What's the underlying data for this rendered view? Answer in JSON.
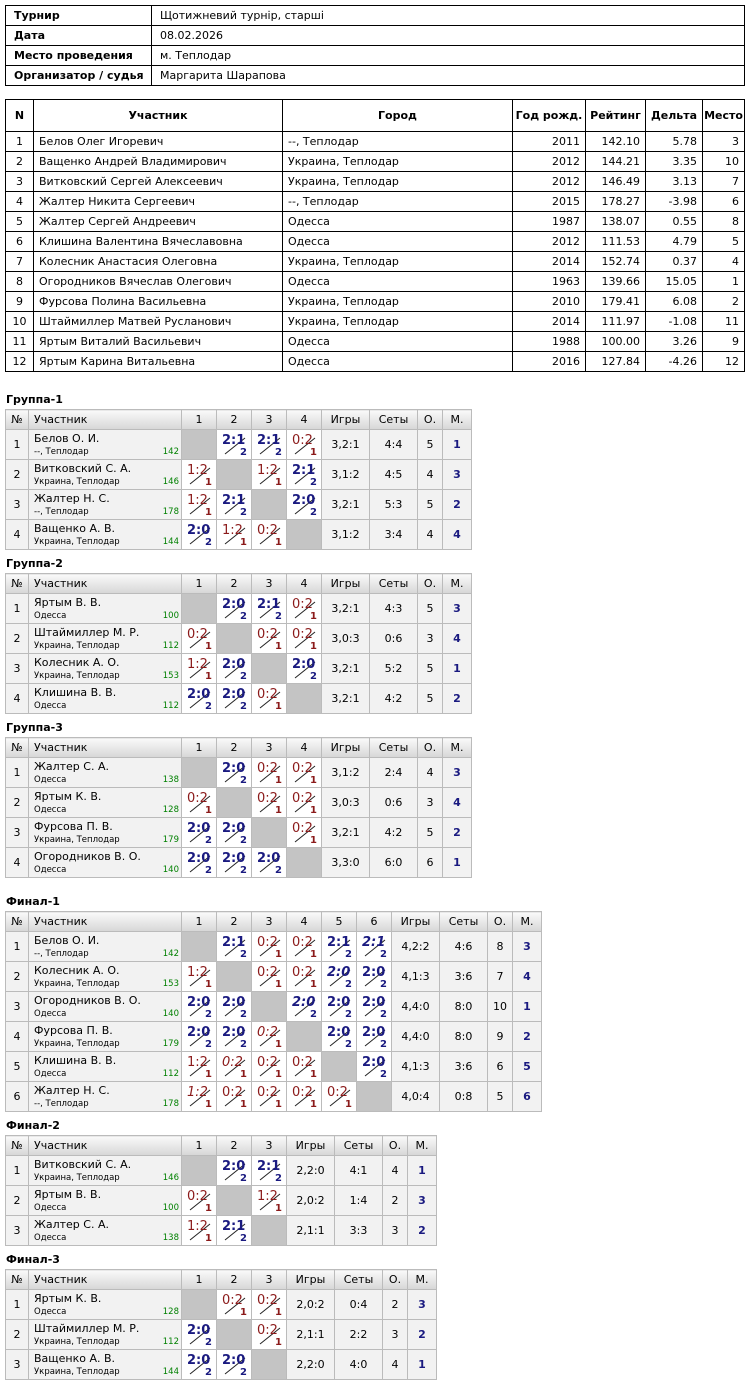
{
  "info": [
    {
      "k": "Турнир",
      "v": "Щотижневий турнір, старші"
    },
    {
      "k": "Дата",
      "v": "08.02.2026"
    },
    {
      "k": "Место проведения",
      "v": "м. Теплодар"
    },
    {
      "k": "Организатор / судья",
      "v": "Маргарита Шарапова"
    }
  ],
  "main": {
    "headers": [
      "N",
      "Участник",
      "Город",
      "Год рожд.",
      "Рейтинг",
      "Дельта",
      "Место"
    ],
    "rows": [
      [
        "1",
        "Белов Олег Игоревич",
        "--, Теплодар",
        "2011",
        "142.10",
        "5.78",
        "3"
      ],
      [
        "2",
        "Ващенко Андрей Владимирович",
        "Украина, Теплодар",
        "2012",
        "144.21",
        "3.35",
        "10"
      ],
      [
        "3",
        "Витковский Сергей Алексеевич",
        "Украина, Теплодар",
        "2012",
        "146.49",
        "3.13",
        "7"
      ],
      [
        "4",
        "Жалтер Никита Сергеевич",
        "--, Теплодар",
        "2015",
        "178.27",
        "-3.98",
        "6"
      ],
      [
        "5",
        "Жалтер Сергей Андреевич",
        "Одесса",
        "1987",
        "138.07",
        "0.55",
        "8"
      ],
      [
        "6",
        "Клишина Валентина Вячеславовна",
        "Одесса",
        "2012",
        "111.53",
        "4.79",
        "5"
      ],
      [
        "7",
        "Колесник Анастасия Олеговна",
        "Украина, Теплодар",
        "2014",
        "152.74",
        "0.37",
        "4"
      ],
      [
        "8",
        "Огородников Вячеслав Олегович",
        "Одесса",
        "1963",
        "139.66",
        "15.05",
        "1"
      ],
      [
        "9",
        "Фурсова Полина Васильевна",
        "Украина, Теплодар",
        "2010",
        "179.41",
        "6.08",
        "2"
      ],
      [
        "10",
        "Штаймиллер Матвей Русланович",
        "Украина, Теплодар",
        "2014",
        "111.97",
        "-1.08",
        "11"
      ],
      [
        "11",
        "Яртым Виталий Васильевич",
        "Одесса",
        "1988",
        "100.00",
        "3.26",
        "9"
      ],
      [
        "12",
        "Яртым Карина Витальевна",
        "Одесса",
        "2016",
        "127.84",
        "-4.26",
        "12"
      ]
    ]
  },
  "group_headers": {
    "num": "№",
    "player": "Участник",
    "games": "Игры",
    "sets": "Сеты",
    "points": "О.",
    "place": "М."
  },
  "groups": [
    {
      "title": "Группа-1",
      "rows": [
        {
          "n": "1",
          "name": "Белов О. И.",
          "city": "--, Теплодар",
          "rating": "142",
          "cells": [
            "",
            "2:1|2",
            "2:1|2",
            "0:2|1"
          ],
          "games": "3,2:1",
          "sets": "4:4",
          "points": "5",
          "place": "1"
        },
        {
          "n": "2",
          "name": "Витковский С. А.",
          "city": "Украина, Теплодар",
          "rating": "146",
          "cells": [
            "1:2|1",
            "",
            "1:2|1",
            "2:1|2"
          ],
          "games": "3,1:2",
          "sets": "4:5",
          "points": "4",
          "place": "3"
        },
        {
          "n": "3",
          "name": "Жалтер Н. С.",
          "city": "--, Теплодар",
          "rating": "178",
          "cells": [
            "1:2|1",
            "2:1|2",
            "",
            "2:0|2"
          ],
          "games": "3,2:1",
          "sets": "5:3",
          "points": "5",
          "place": "2"
        },
        {
          "n": "4",
          "name": "Ващенко А. В.",
          "city": "Украина, Теплодар",
          "rating": "144",
          "cells": [
            "2:0|2",
            "1:2|1",
            "0:2|1",
            ""
          ],
          "games": "3,1:2",
          "sets": "3:4",
          "points": "4",
          "place": "4"
        }
      ]
    },
    {
      "title": "Группа-2",
      "rows": [
        {
          "n": "1",
          "name": "Яртым В. В.",
          "city": "Одесса",
          "rating": "100",
          "cells": [
            "",
            "2:0|2",
            "2:1|2",
            "0:2|1"
          ],
          "games": "3,2:1",
          "sets": "4:3",
          "points": "5",
          "place": "3"
        },
        {
          "n": "2",
          "name": "Штаймиллер М. Р.",
          "city": "Украина, Теплодар",
          "rating": "112",
          "cells": [
            "0:2|1",
            "",
            "0:2|1",
            "0:2|1"
          ],
          "games": "3,0:3",
          "sets": "0:6",
          "points": "3",
          "place": "4"
        },
        {
          "n": "3",
          "name": "Колесник А. О.",
          "city": "Украина, Теплодар",
          "rating": "153",
          "cells": [
            "1:2|1",
            "2:0|2",
            "",
            "2:0|2"
          ],
          "games": "3,2:1",
          "sets": "5:2",
          "points": "5",
          "place": "1"
        },
        {
          "n": "4",
          "name": "Клишина В. В.",
          "city": "Одесса",
          "rating": "112",
          "cells": [
            "2:0|2",
            "2:0|2",
            "0:2|1",
            ""
          ],
          "games": "3,2:1",
          "sets": "4:2",
          "points": "5",
          "place": "2"
        }
      ]
    },
    {
      "title": "Группа-3",
      "rows": [
        {
          "n": "1",
          "name": "Жалтер С. А.",
          "city": "Одесса",
          "rating": "138",
          "cells": [
            "",
            "2:0|2",
            "0:2|1",
            "0:2|1"
          ],
          "games": "3,1:2",
          "sets": "2:4",
          "points": "4",
          "place": "3"
        },
        {
          "n": "2",
          "name": "Яртым К. В.",
          "city": "Одесса",
          "rating": "128",
          "cells": [
            "0:2|1",
            "",
            "0:2|1",
            "0:2|1"
          ],
          "games": "3,0:3",
          "sets": "0:6",
          "points": "3",
          "place": "4"
        },
        {
          "n": "3",
          "name": "Фурсова П. В.",
          "city": "Украина, Теплодар",
          "rating": "179",
          "cells": [
            "2:0|2",
            "2:0|2",
            "",
            "0:2|1"
          ],
          "games": "3,2:1",
          "sets": "4:2",
          "points": "5",
          "place": "2"
        },
        {
          "n": "4",
          "name": "Огородников В. О.",
          "city": "Одесса",
          "rating": "140",
          "cells": [
            "2:0|2",
            "2:0|2",
            "2:0|2",
            ""
          ],
          "games": "3,3:0",
          "sets": "6:0",
          "points": "6",
          "place": "1"
        }
      ]
    },
    {
      "title": "Финал-1",
      "rows": [
        {
          "n": "1",
          "name": "Белов О. И.",
          "city": "--, Теплодар",
          "rating": "142",
          "cells": [
            "",
            "2:1|2",
            "0:2|1",
            "0:2|1",
            "2:1|2",
            "2:1|2|i"
          ],
          "games": "4,2:2",
          "sets": "4:6",
          "points": "8",
          "place": "3"
        },
        {
          "n": "2",
          "name": "Колесник А. О.",
          "city": "Украина, Теплодар",
          "rating": "153",
          "cells": [
            "1:2|1",
            "",
            "0:2|1",
            "0:2|1",
            "2:0|2|i",
            "2:0|2"
          ],
          "games": "4,1:3",
          "sets": "3:6",
          "points": "7",
          "place": "4"
        },
        {
          "n": "3",
          "name": "Огородников В. О.",
          "city": "Одесса",
          "rating": "140",
          "cells": [
            "2:0|2",
            "2:0|2",
            "",
            "2:0|2|i",
            "2:0|2",
            "2:0|2"
          ],
          "games": "4,4:0",
          "sets": "8:0",
          "points": "10",
          "place": "1"
        },
        {
          "n": "4",
          "name": "Фурсова П. В.",
          "city": "Украина, Теплодар",
          "rating": "179",
          "cells": [
            "2:0|2",
            "2:0|2",
            "0:2|1|i",
            "",
            "2:0|2",
            "2:0|2"
          ],
          "games": "4,4:0",
          "sets": "8:0",
          "points": "9",
          "place": "2"
        },
        {
          "n": "5",
          "name": "Клишина В. В.",
          "city": "Одесса",
          "rating": "112",
          "cells": [
            "1:2|1",
            "0:2|1|i",
            "0:2|1",
            "0:2|1",
            "",
            "2:0|2"
          ],
          "games": "4,1:3",
          "sets": "3:6",
          "points": "6",
          "place": "5"
        },
        {
          "n": "6",
          "name": "Жалтер Н. С.",
          "city": "--, Теплодар",
          "rating": "178",
          "cells": [
            "1:2|1|i",
            "0:2|1",
            "0:2|1",
            "0:2|1",
            "0:2|1",
            ""
          ],
          "games": "4,0:4",
          "sets": "0:8",
          "points": "5",
          "place": "6"
        }
      ]
    },
    {
      "title": "Финал-2",
      "rows": [
        {
          "n": "1",
          "name": "Витковский С. А.",
          "city": "Украина, Теплодар",
          "rating": "146",
          "cells": [
            "",
            "2:0|2",
            "2:1|2"
          ],
          "games": "2,2:0",
          "sets": "4:1",
          "points": "4",
          "place": "1"
        },
        {
          "n": "2",
          "name": "Яртым В. В.",
          "city": "Одесса",
          "rating": "100",
          "cells": [
            "0:2|1",
            "",
            "1:2|1"
          ],
          "games": "2,0:2",
          "sets": "1:4",
          "points": "2",
          "place": "3"
        },
        {
          "n": "3",
          "name": "Жалтер С. А.",
          "city": "Одесса",
          "rating": "138",
          "cells": [
            "1:2|1",
            "2:1|2",
            ""
          ],
          "games": "2,1:1",
          "sets": "3:3",
          "points": "3",
          "place": "2"
        }
      ]
    },
    {
      "title": "Финал-3",
      "rows": [
        {
          "n": "1",
          "name": "Яртым К. В.",
          "city": "Одесса",
          "rating": "128",
          "cells": [
            "",
            "0:2|1",
            "0:2|1"
          ],
          "games": "2,0:2",
          "sets": "0:4",
          "points": "2",
          "place": "3"
        },
        {
          "n": "2",
          "name": "Штаймиллер М. Р.",
          "city": "Украина, Теплодар",
          "rating": "112",
          "cells": [
            "2:0|2",
            "",
            "0:2|1"
          ],
          "games": "2,1:1",
          "sets": "2:2",
          "points": "3",
          "place": "2"
        },
        {
          "n": "3",
          "name": "Ващенко А. В.",
          "city": "Украина, Теплодар",
          "rating": "144",
          "cells": [
            "2:0|2",
            "2:0|2",
            ""
          ],
          "games": "2,2:0",
          "sets": "4:0",
          "points": "4",
          "place": "1"
        }
      ]
    }
  ]
}
